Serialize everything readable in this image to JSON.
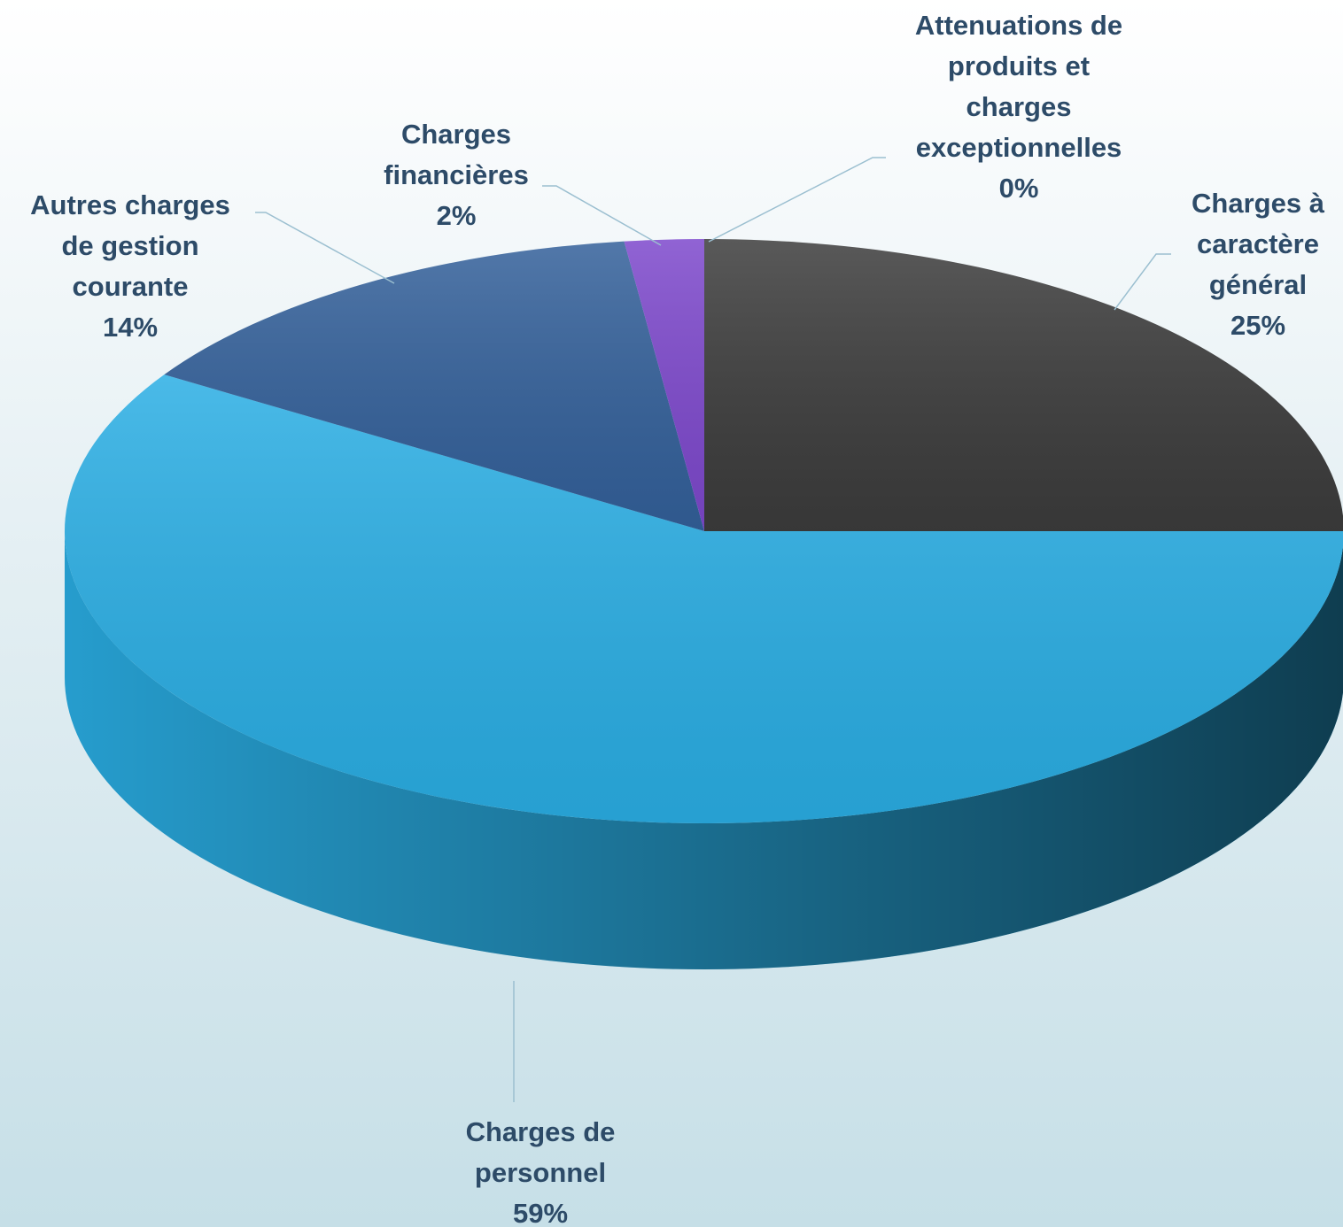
{
  "chart_data": {
    "type": "pie",
    "categories": [
      "Charges à caractère général",
      "Charges de personnel",
      "Autres charges de gestion courante",
      "Charges financières",
      "Attenuations de produits et charges exceptionnelles"
    ],
    "values": [
      25,
      59,
      14,
      2,
      0
    ],
    "value_labels": [
      "25%",
      "59%",
      "14%",
      "2%",
      "0%"
    ],
    "colors": [
      "#3c3c3c",
      "#2aaee4",
      "#33609a",
      "#7d48cc",
      "#b23fe2"
    ]
  }
}
